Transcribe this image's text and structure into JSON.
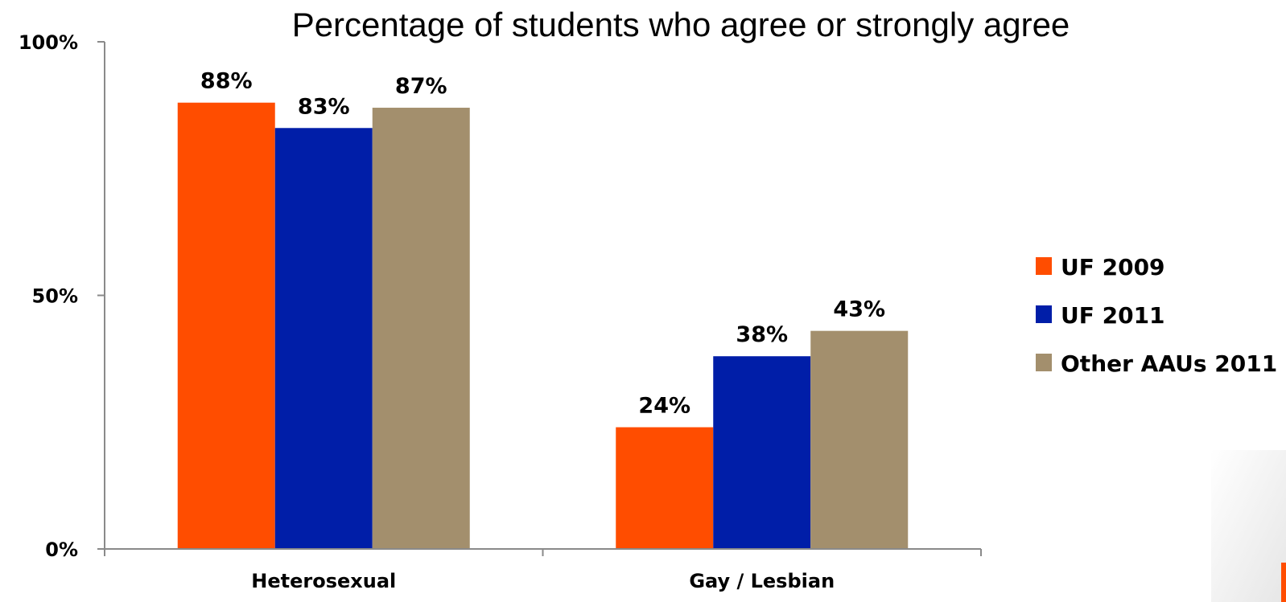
{
  "chart_data": {
    "type": "bar",
    "title": "Percentage of students who agree or strongly agree",
    "xlabel": "",
    "ylabel": "",
    "categories": [
      "Heterosexual",
      "Gay / Lesbian"
    ],
    "series": [
      {
        "name": "UF 2009",
        "values": [
          88,
          24
        ],
        "labels": [
          "88%",
          "24%"
        ],
        "color": "#ff4d00"
      },
      {
        "name": "UF 2011",
        "values": [
          83,
          38
        ],
        "labels": [
          "83%",
          "38%"
        ],
        "color": "#001ea8"
      },
      {
        "name": "Other AAUs 2011",
        "values": [
          87,
          43
        ],
        "labels": [
          "87%",
          "43%"
        ],
        "color": "#a38f6d"
      }
    ],
    "ylim": [
      0,
      100
    ],
    "yticks": [
      {
        "value": 0,
        "label": "0%"
      },
      {
        "value": 50,
        "label": "50%"
      },
      {
        "value": 100,
        "label": "100%"
      }
    ],
    "grid": false,
    "legend": "right"
  }
}
